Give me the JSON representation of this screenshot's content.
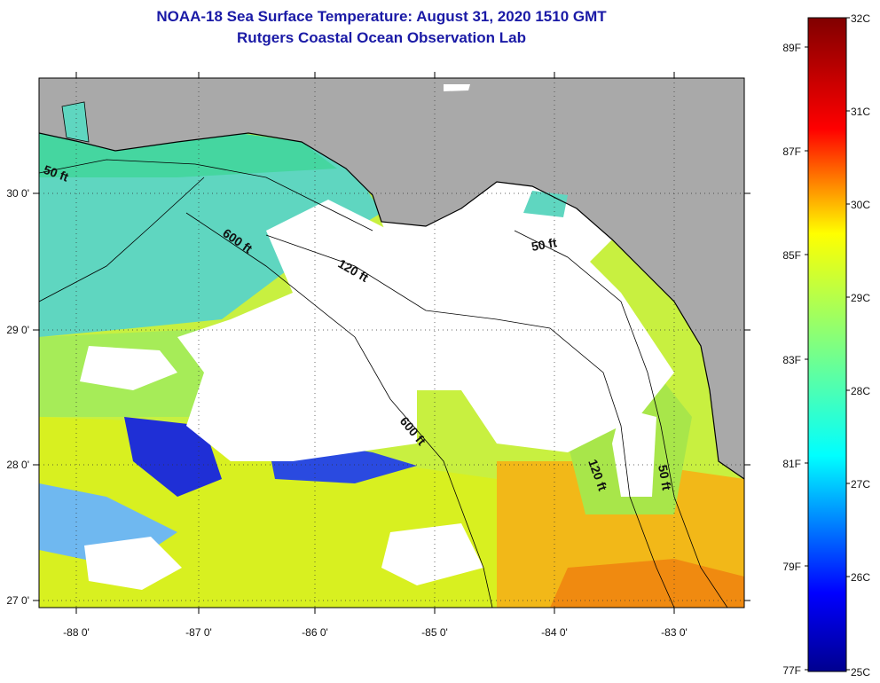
{
  "header": {
    "title": "NOAA-18 Sea Surface Temperature:  August 31, 2020 1510 GMT",
    "subtitle": "Rutgers Coastal Ocean Observation Lab"
  },
  "axes": {
    "longitude_labels": [
      "-88 0'",
      "-87 0'",
      "-86 0'",
      "-85 0'",
      "-84 0'",
      "-83 0'"
    ],
    "latitude_labels": [
      "30 0'",
      "29 0'",
      "28 0'",
      "27 0'"
    ]
  },
  "isobaths": [
    {
      "label": "50 ft"
    },
    {
      "label": "600 ft"
    },
    {
      "label": "120 ft"
    },
    {
      "label": "50 ft"
    },
    {
      "label": "600 ft"
    },
    {
      "label": "120 ft"
    },
    {
      "label": "50 ft"
    }
  ],
  "colorbar": {
    "celsius_labels": [
      "32C",
      "31C",
      "30C",
      "29C",
      "28C",
      "27C",
      "26C",
      "25C"
    ],
    "fahrenheit_labels": [
      "89F",
      "87F",
      "85F",
      "83F",
      "81F",
      "79F",
      "77F"
    ]
  },
  "colors": {
    "land": "#a9a9a9",
    "cloud": "#ffffff",
    "frame": "#000000",
    "title": "#1a1aa6"
  }
}
